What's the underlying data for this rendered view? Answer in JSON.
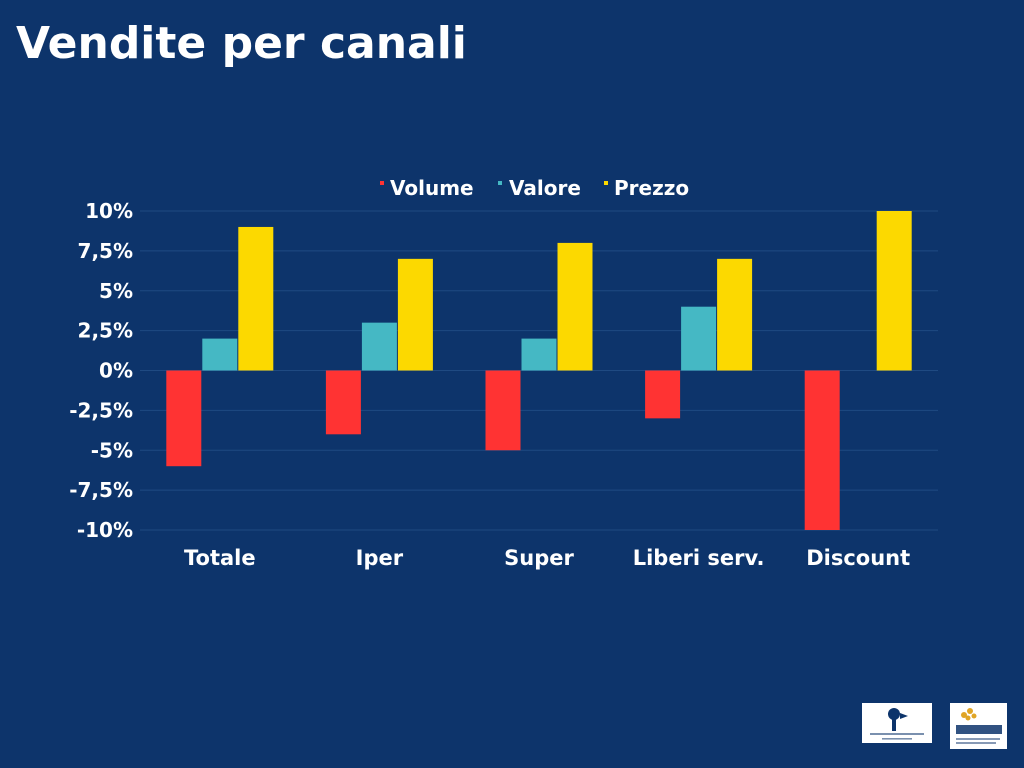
{
  "slide": {
    "title": "Vendite per canali"
  },
  "chart_data": {
    "type": "bar",
    "categories": [
      "Totale",
      "Iper",
      "Super",
      "Liberi serv.",
      "Discount"
    ],
    "series": [
      {
        "name": "Volume",
        "color": "#ff3333",
        "values": [
          -6,
          -4,
          -5,
          -3,
          -10
        ]
      },
      {
        "name": "Valore",
        "color": "#45b8c4",
        "values": [
          2,
          3,
          2,
          4,
          0
        ]
      },
      {
        "name": "Prezzo",
        "color": "#fcd900",
        "values": [
          9,
          7,
          8,
          7,
          10
        ]
      }
    ],
    "yticks": [
      {
        "value": 10,
        "label": "10%"
      },
      {
        "value": 7.5,
        "label": "7,5%"
      },
      {
        "value": 5,
        "label": "5%"
      },
      {
        "value": 2.5,
        "label": "2,5%"
      },
      {
        "value": 0,
        "label": "0%"
      },
      {
        "value": -2.5,
        "label": "-2,5%"
      },
      {
        "value": -5,
        "label": "-5%"
      },
      {
        "value": -7.5,
        "label": "-7,5%"
      },
      {
        "value": -10,
        "label": "-10%"
      }
    ],
    "ylim": [
      -10,
      10
    ],
    "grid": true,
    "legend_position": "top-center"
  },
  "logos": [
    {
      "name": "osservatorio-del-vino-logo",
      "text": "OSSERVATORIO DEL VINO"
    },
    {
      "name": "ismea-logo",
      "text": "ismea"
    }
  ],
  "colors": {
    "background": "#0d346b",
    "gridline": "#1f4a82"
  }
}
